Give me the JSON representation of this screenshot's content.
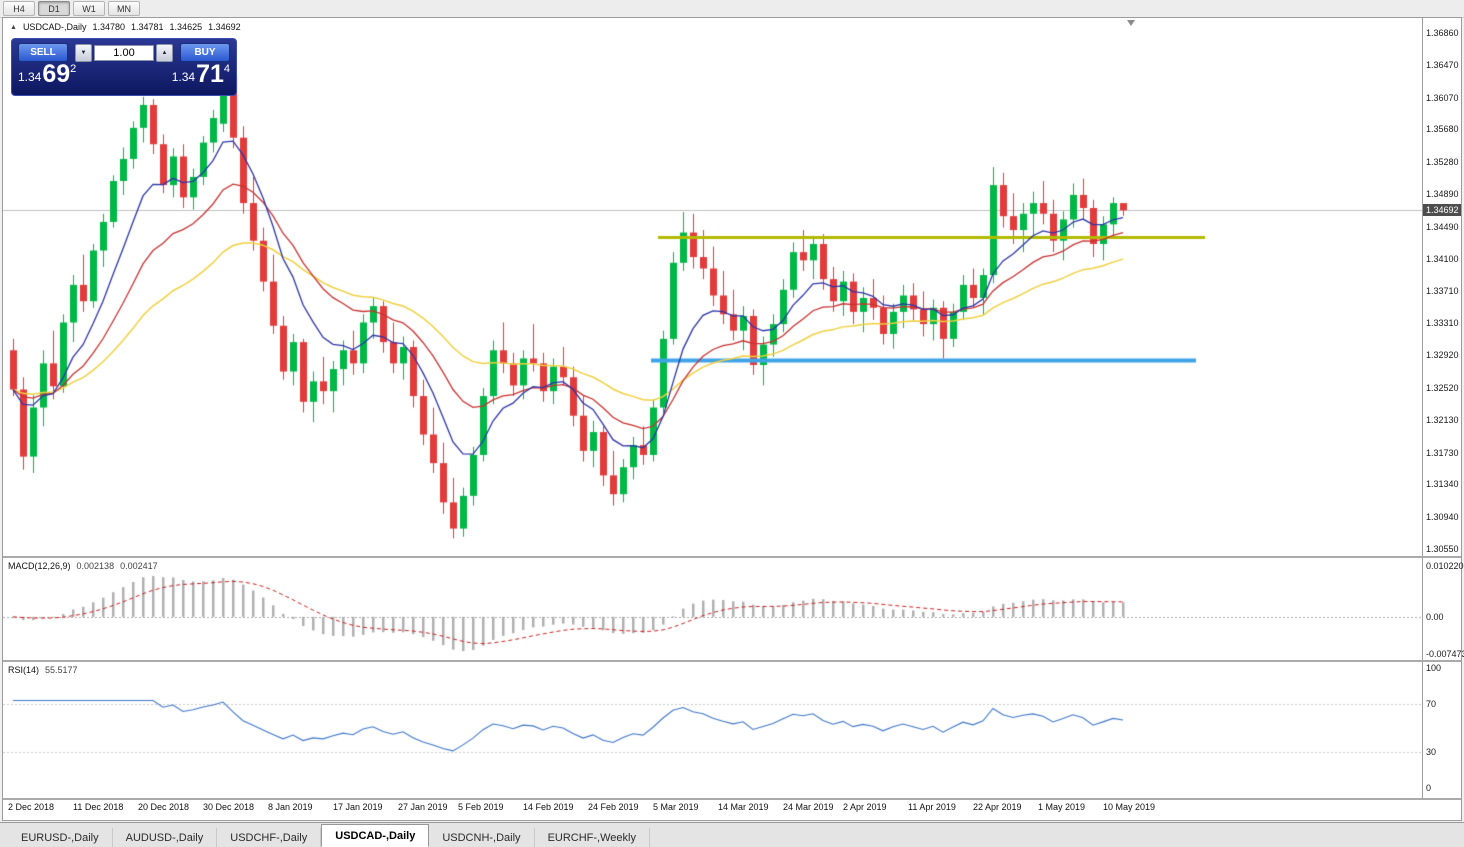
{
  "toolbar": {
    "timeframes": [
      {
        "label": "H4",
        "active": false
      },
      {
        "label": "D1",
        "active": true
      },
      {
        "label": "W1",
        "active": false
      },
      {
        "label": "MN",
        "active": false
      }
    ]
  },
  "icons": {
    "collapse_icon": "▲",
    "spinner_down_icon": "▼",
    "spinner_up_icon": "▲"
  },
  "chart": {
    "title": "USDCAD-,Daily",
    "ohlc": {
      "open": "1.34780",
      "high": "1.34781",
      "low": "1.34625",
      "close": "1.34692"
    },
    "current_price": "1.34692",
    "price_scale": [
      "1.36860",
      "1.36470",
      "1.36070",
      "1.35680",
      "1.35280",
      "1.34890",
      "1.34490",
      "1.34100",
      "1.33710",
      "1.33310",
      "1.32920",
      "1.32520",
      "1.32130",
      "1.31730",
      "1.31340",
      "1.30940",
      "1.30550"
    ],
    "one_click": {
      "sell_label": "SELL",
      "buy_label": "BUY",
      "volume": "1.00",
      "sell_price": {
        "big": "1.34",
        "pips": "69",
        "pipette": "2"
      },
      "buy_price": {
        "big": "1.34",
        "pips": "71",
        "pipette": "4"
      }
    }
  },
  "macd_panel": {
    "label": "MACD(12,26,9)",
    "main_value": "0.002138",
    "signal_value": "0.002417",
    "scale": [
      "0.010220",
      "0.00",
      "-0.007473"
    ]
  },
  "rsi_panel": {
    "label": "RSI(14)",
    "value": "55.5177",
    "scale": [
      "100",
      "70",
      "30",
      "0"
    ]
  },
  "date_axis": [
    {
      "index": 0,
      "text": "2 Dec 2018"
    },
    {
      "index": 6.5,
      "text": "11 Dec 2018"
    },
    {
      "index": 13,
      "text": "20 Dec 2018"
    },
    {
      "index": 19.5,
      "text": "30 Dec 2018"
    },
    {
      "index": 26,
      "text": "8 Jan 2019"
    },
    {
      "index": 32.5,
      "text": "17 Jan 2019"
    },
    {
      "index": 39,
      "text": "27 Jan 2019"
    },
    {
      "index": 45,
      "text": "5 Feb 2019"
    },
    {
      "index": 51.5,
      "text": "14 Feb 2019"
    },
    {
      "index": 58,
      "text": "24 Feb 2019"
    },
    {
      "index": 64.5,
      "text": "5 Mar 2019"
    },
    {
      "index": 71,
      "text": "14 Mar 2019"
    },
    {
      "index": 77.5,
      "text": "24 Mar 2019"
    },
    {
      "index": 83.5,
      "text": "2 Apr 2019"
    },
    {
      "index": 90,
      "text": "11 Apr 2019"
    },
    {
      "index": 96.5,
      "text": "22 Apr 2019"
    },
    {
      "index": 103,
      "text": "1 May 2019"
    },
    {
      "index": 109.5,
      "text": "10 May 2019"
    }
  ],
  "tabs": [
    {
      "label": "EURUSD-,Daily",
      "active": false
    },
    {
      "label": "AUDUSD-,Daily",
      "active": false
    },
    {
      "label": "USDCHF-,Daily",
      "active": false
    },
    {
      "label": "USDCAD-,Daily",
      "active": true
    },
    {
      "label": "USDCNH-,Daily",
      "active": false
    },
    {
      "label": "EURCHF-,Weekly",
      "active": false
    }
  ],
  "chart_data": {
    "type": "candlestick",
    "symbol": "USDCAD-",
    "timeframe": "Daily",
    "price_range": [
      1.3055,
      1.3686
    ],
    "bid_price": 1.34692,
    "up_color": "#00b846",
    "down_color": "#e23b3b",
    "bid_line_color": "#c0c0c0",
    "candles": [
      [
        1.3298,
        1.3312,
        1.3242,
        1.325
      ],
      [
        1.325,
        1.3265,
        1.3152,
        1.3168
      ],
      [
        1.3168,
        1.3243,
        1.3148,
        1.3228
      ],
      [
        1.3228,
        1.3298,
        1.3205,
        1.3282
      ],
      [
        1.3282,
        1.3322,
        1.3238,
        1.3254
      ],
      [
        1.3254,
        1.3342,
        1.3246,
        1.3332
      ],
      [
        1.3332,
        1.339,
        1.3308,
        1.3378
      ],
      [
        1.3378,
        1.3415,
        1.3345,
        1.3358
      ],
      [
        1.3358,
        1.3428,
        1.335,
        1.342
      ],
      [
        1.342,
        1.3465,
        1.34,
        1.3455
      ],
      [
        1.3455,
        1.3512,
        1.3448,
        1.3505
      ],
      [
        1.3505,
        1.3546,
        1.3488,
        1.3532
      ],
      [
        1.3532,
        1.3578,
        1.352,
        1.357
      ],
      [
        1.357,
        1.3608,
        1.3552,
        1.3598
      ],
      [
        1.3598,
        1.3605,
        1.3538,
        1.355
      ],
      [
        1.355,
        1.3562,
        1.349,
        1.35
      ],
      [
        1.35,
        1.3545,
        1.3485,
        1.3535
      ],
      [
        1.3535,
        1.355,
        1.3472,
        1.3485
      ],
      [
        1.3485,
        1.352,
        1.347,
        1.351
      ],
      [
        1.351,
        1.356,
        1.35,
        1.3552
      ],
      [
        1.3552,
        1.3592,
        1.354,
        1.3582
      ],
      [
        1.3575,
        1.364,
        1.3565,
        1.3632
      ],
      [
        1.3632,
        1.3645,
        1.3545,
        1.3558
      ],
      [
        1.3558,
        1.3572,
        1.3465,
        1.3478
      ],
      [
        1.3478,
        1.351,
        1.342,
        1.3432
      ],
      [
        1.3432,
        1.3448,
        1.337,
        1.3382
      ],
      [
        1.3382,
        1.3415,
        1.3318,
        1.3328
      ],
      [
        1.3328,
        1.334,
        1.3262,
        1.3272
      ],
      [
        1.3272,
        1.3318,
        1.3255,
        1.3308
      ],
      [
        1.3308,
        1.3312,
        1.3222,
        1.3235
      ],
      [
        1.3235,
        1.3272,
        1.321,
        1.326
      ],
      [
        1.326,
        1.329,
        1.3232,
        1.3248
      ],
      [
        1.3248,
        1.3285,
        1.3222,
        1.3275
      ],
      [
        1.3275,
        1.331,
        1.3255,
        1.3298
      ],
      [
        1.3298,
        1.3322,
        1.3268,
        1.3282
      ],
      [
        1.3282,
        1.3342,
        1.327,
        1.3332
      ],
      [
        1.3332,
        1.3362,
        1.3312,
        1.3352
      ],
      [
        1.3352,
        1.3358,
        1.3295,
        1.3308
      ],
      [
        1.3308,
        1.3332,
        1.327,
        1.3282
      ],
      [
        1.3282,
        1.3315,
        1.3262,
        1.3302
      ],
      [
        1.3302,
        1.331,
        1.3228,
        1.3242
      ],
      [
        1.3242,
        1.3262,
        1.3182,
        1.3195
      ],
      [
        1.3195,
        1.3228,
        1.3148,
        1.316
      ],
      [
        1.316,
        1.3185,
        1.3098,
        1.3112
      ],
      [
        1.3112,
        1.3142,
        1.3068,
        1.308
      ],
      [
        1.308,
        1.313,
        1.307,
        1.312
      ],
      [
        1.312,
        1.318,
        1.3108,
        1.317
      ],
      [
        1.317,
        1.3252,
        1.3162,
        1.3242
      ],
      [
        1.3242,
        1.331,
        1.3232,
        1.3298
      ],
      [
        1.3298,
        1.3332,
        1.327,
        1.3282
      ],
      [
        1.3282,
        1.3295,
        1.3242,
        1.3255
      ],
      [
        1.3255,
        1.3298,
        1.3238,
        1.3288
      ],
      [
        1.3288,
        1.333,
        1.3272,
        1.3282
      ],
      [
        1.3282,
        1.3295,
        1.3235,
        1.3248
      ],
      [
        1.3248,
        1.3288,
        1.3232,
        1.3278
      ],
      [
        1.3278,
        1.3302,
        1.3255,
        1.3265
      ],
      [
        1.3265,
        1.3278,
        1.3205,
        1.3218
      ],
      [
        1.3218,
        1.3242,
        1.3162,
        1.3175
      ],
      [
        1.3175,
        1.3212,
        1.3155,
        1.3198
      ],
      [
        1.3198,
        1.3205,
        1.3132,
        1.3145
      ],
      [
        1.3145,
        1.3175,
        1.3108,
        1.3122
      ],
      [
        1.3122,
        1.3165,
        1.3112,
        1.3155
      ],
      [
        1.3155,
        1.3192,
        1.314,
        1.3182
      ],
      [
        1.3182,
        1.3205,
        1.3158,
        1.317
      ],
      [
        1.317,
        1.3238,
        1.3162,
        1.3228
      ],
      [
        1.3228,
        1.3322,
        1.3222,
        1.3312
      ],
      [
        1.3312,
        1.3418,
        1.3305,
        1.3405
      ],
      [
        1.3405,
        1.3467,
        1.3395,
        1.3442
      ],
      [
        1.3442,
        1.3465,
        1.3398,
        1.3412
      ],
      [
        1.3412,
        1.3445,
        1.3385,
        1.3398
      ],
      [
        1.3398,
        1.3425,
        1.3352,
        1.3365
      ],
      [
        1.3365,
        1.3395,
        1.333,
        1.3342
      ],
      [
        1.3342,
        1.3372,
        1.331,
        1.3322
      ],
      [
        1.3322,
        1.3352,
        1.3298,
        1.334
      ],
      [
        1.334,
        1.3348,
        1.3268,
        1.328
      ],
      [
        1.328,
        1.3315,
        1.3255,
        1.3305
      ],
      [
        1.3305,
        1.3342,
        1.329,
        1.333
      ],
      [
        1.333,
        1.3385,
        1.332,
        1.3372
      ],
      [
        1.3372,
        1.343,
        1.3362,
        1.3418
      ],
      [
        1.3418,
        1.3445,
        1.3395,
        1.3408
      ],
      [
        1.3408,
        1.3438,
        1.3385,
        1.3428
      ],
      [
        1.3428,
        1.344,
        1.3372,
        1.3385
      ],
      [
        1.3385,
        1.34,
        1.3345,
        1.3358
      ],
      [
        1.3358,
        1.3395,
        1.334,
        1.3382
      ],
      [
        1.3382,
        1.3392,
        1.333,
        1.3345
      ],
      [
        1.3345,
        1.3375,
        1.332,
        1.3362
      ],
      [
        1.3362,
        1.3385,
        1.3335,
        1.335
      ],
      [
        1.335,
        1.3365,
        1.3305,
        1.3318
      ],
      [
        1.3318,
        1.3355,
        1.33,
        1.3345
      ],
      [
        1.3345,
        1.3378,
        1.3325,
        1.3365
      ],
      [
        1.3365,
        1.338,
        1.3335,
        1.3348
      ],
      [
        1.3348,
        1.337,
        1.3315,
        1.333
      ],
      [
        1.333,
        1.336,
        1.331,
        1.335
      ],
      [
        1.335,
        1.3358,
        1.3288,
        1.3312
      ],
      [
        1.3312,
        1.3355,
        1.3302,
        1.3345
      ],
      [
        1.3345,
        1.339,
        1.3335,
        1.3378
      ],
      [
        1.3378,
        1.3398,
        1.335,
        1.3362
      ],
      [
        1.3362,
        1.3398,
        1.3342,
        1.339
      ],
      [
        1.339,
        1.3522,
        1.338,
        1.35
      ],
      [
        1.35,
        1.3515,
        1.3448,
        1.3462
      ],
      [
        1.3462,
        1.349,
        1.3428,
        1.3445
      ],
      [
        1.3445,
        1.3478,
        1.3418,
        1.3465
      ],
      [
        1.3465,
        1.3492,
        1.3438,
        1.3478
      ],
      [
        1.3478,
        1.3505,
        1.3452,
        1.3465
      ],
      [
        1.3465,
        1.3482,
        1.3418,
        1.3432
      ],
      [
        1.3432,
        1.3468,
        1.3408,
        1.3458
      ],
      [
        1.3458,
        1.3502,
        1.3448,
        1.3488
      ],
      [
        1.3488,
        1.3508,
        1.3458,
        1.3472
      ],
      [
        1.3472,
        1.3482,
        1.3412,
        1.3428
      ],
      [
        1.3428,
        1.3462,
        1.3408,
        1.3452
      ],
      [
        1.3452,
        1.3485,
        1.3435,
        1.3478
      ],
      [
        1.3478,
        1.34781,
        1.34625,
        1.34692
      ]
    ],
    "moving_averages": [
      {
        "name": "fast",
        "method": "ema",
        "period": 8,
        "color": "#2b35a8",
        "width": 1.3
      },
      {
        "name": "medium",
        "method": "ema",
        "period": 17,
        "color": "#c93232",
        "width": 1.3
      },
      {
        "name": "slow",
        "method": "ema",
        "period": 34,
        "color": "#f0d040",
        "width": 1.5
      }
    ],
    "horizontal_lines": [
      {
        "name": "resistance",
        "price": 1.3437,
        "color": "#b2ba00",
        "width": 3,
        "from_index": 64.5,
        "to_index": 119.2
      },
      {
        "name": "support",
        "price": 1.3286,
        "color": "#3fa3e8",
        "width": 4,
        "from_index": 63.8,
        "to_index": 118.3
      }
    ],
    "macd": {
      "fast": 12,
      "slow": 26,
      "signal": 9,
      "range": [
        -0.007473,
        0.01022
      ],
      "histogram_color": "#b0b0b0",
      "signal_color": "#cc2222"
    },
    "rsi": {
      "period": 14,
      "range": [
        0,
        100
      ],
      "levels": [
        70,
        30
      ],
      "line_color": "#3f76c8"
    }
  }
}
